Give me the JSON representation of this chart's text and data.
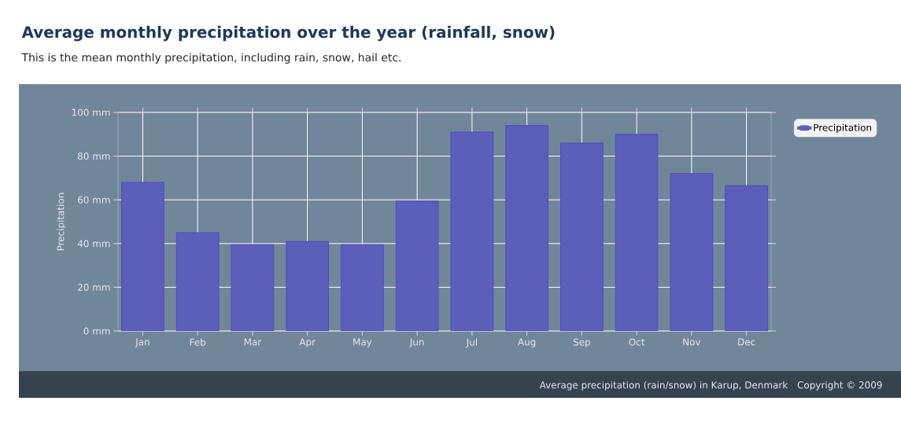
{
  "chart_data": {
    "type": "bar",
    "title": "Average monthly precipitation over the year (rainfall, snow)",
    "subtitle": "This is the mean monthly precipitation, including rain, snow, hail etc.",
    "ylabel": "Precipitation",
    "categories": [
      "Jan",
      "Feb",
      "Mar",
      "Apr",
      "May",
      "Jun",
      "Jul",
      "Aug",
      "Sep",
      "Oct",
      "Nov",
      "Dec"
    ],
    "series": [
      {
        "name": "Precipitation",
        "color": "#5b5fb9",
        "values": [
          68,
          45,
          39.5,
          41,
          39.5,
          59.5,
          91,
          94,
          86,
          90,
          72,
          66.5
        ]
      }
    ],
    "ylim": [
      0,
      100
    ],
    "yticks": [
      {
        "value": 0,
        "label": "0 mm"
      },
      {
        "value": 20,
        "label": "20 mm"
      },
      {
        "value": 40,
        "label": "40 mm"
      },
      {
        "value": 60,
        "label": "60 mm"
      },
      {
        "value": 80,
        "label": "80 mm"
      },
      {
        "value": 100,
        "label": "100 mm"
      }
    ],
    "grid": true,
    "legend": "top right",
    "annotations": [
      "Average precipitation (rain/snow) in Karup, Denmark",
      "Copyright © 2009"
    ]
  }
}
